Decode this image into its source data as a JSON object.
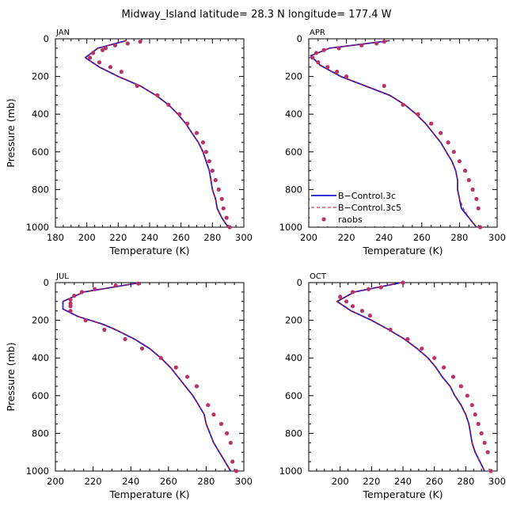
{
  "title": "Midway_Island   latitude= 28.3 N longitude= 177.4 W",
  "colors": {
    "model_3c": "#1a1ad0",
    "model_3c5": "#cc1111",
    "raobs": "#b8336a",
    "axis": "#000000"
  },
  "legend": {
    "entries": [
      {
        "label": "B−Control.3c",
        "style": "solid-line"
      },
      {
        "label": "B−Control.3c5",
        "style": "dashed-line"
      },
      {
        "label": "raobs",
        "style": "dot"
      }
    ]
  },
  "chart_data": [
    {
      "type": "line",
      "panel": "JAN",
      "title": "JAN",
      "xlabel": "Temperature (K)",
      "ylabel": "Pressure (mb)",
      "xlim": [
        180,
        300
      ],
      "ylim": [
        0,
        1000
      ],
      "y_inverted": true,
      "xticks": [
        180,
        200,
        220,
        240,
        260,
        280,
        300
      ],
      "yticks": [
        0,
        200,
        400,
        600,
        800,
        1000
      ],
      "pressure": [
        10,
        50,
        100,
        150,
        200,
        250,
        300,
        350,
        400,
        450,
        500,
        550,
        600,
        650,
        700,
        750,
        800,
        850,
        900,
        950,
        1000
      ],
      "series": [
        {
          "name": "B−Control.3c",
          "temperature": [
            225,
            207,
            199,
            208,
            220,
            234,
            244,
            252,
            258,
            263,
            267,
            271,
            274,
            276,
            278,
            279,
            280,
            282,
            283,
            286,
            290
          ]
        },
        {
          "name": "B−Control.3c5",
          "temperature": [
            225,
            207,
            199,
            208,
            220,
            234,
            244,
            252,
            258,
            263,
            267,
            271,
            274,
            276,
            278,
            279,
            280,
            282,
            283,
            286,
            290
          ]
        }
      ],
      "raobs": {
        "temperature": [
          234,
          226,
          218,
          212,
          210,
          204,
          202,
          208,
          215,
          222,
          232,
          245,
          252,
          259,
          264,
          270,
          274,
          276,
          278,
          280,
          282,
          284,
          286,
          287,
          289,
          291
        ],
        "pressure": [
          15,
          25,
          35,
          50,
          60,
          75,
          100,
          125,
          150,
          175,
          250,
          300,
          350,
          400,
          450,
          500,
          550,
          600,
          650,
          700,
          750,
          800,
          850,
          900,
          950,
          1000
        ]
      }
    },
    {
      "type": "line",
      "panel": "APR",
      "title": "APR",
      "xlabel": "Temperature (K)",
      "ylabel": "Pressure (mb)",
      "xlim": [
        200,
        300
      ],
      "ylim": [
        0,
        1000
      ],
      "y_inverted": true,
      "xticks": [
        200,
        220,
        240,
        260,
        280,
        300
      ],
      "yticks": [
        0,
        200,
        400,
        600,
        800,
        1000
      ],
      "pressure": [
        10,
        50,
        90,
        140,
        200,
        250,
        300,
        350,
        400,
        450,
        500,
        550,
        600,
        650,
        700,
        750,
        800,
        850,
        900,
        950,
        1000
      ],
      "series": [
        {
          "name": "B−Control.3c",
          "temperature": [
            243,
            211,
            201,
            206,
            217,
            230,
            243,
            251,
            257,
            262,
            266,
            270,
            273,
            276,
            278,
            279,
            279,
            280,
            281,
            285,
            289
          ]
        },
        {
          "name": "B−Control.3c5",
          "temperature": [
            243,
            211,
            201,
            206,
            217,
            230,
            243,
            251,
            257,
            262,
            266,
            270,
            273,
            276,
            278,
            279,
            279,
            280,
            282,
            285,
            289
          ]
        }
      ],
      "raobs": {
        "temperature": [
          240,
          236,
          228,
          216,
          208,
          204,
          202,
          205,
          210,
          215,
          220,
          240,
          250,
          258,
          265,
          270,
          274,
          277,
          280,
          283,
          285,
          287,
          289,
          290,
          291
        ],
        "pressure": [
          15,
          25,
          35,
          50,
          60,
          75,
          100,
          125,
          150,
          175,
          200,
          250,
          350,
          400,
          450,
          500,
          550,
          600,
          650,
          700,
          750,
          800,
          850,
          900,
          1000
        ]
      }
    },
    {
      "type": "line",
      "panel": "JUL",
      "title": "JUL",
      "xlabel": "Temperature (K)",
      "ylabel": "Pressure (mb)",
      "xlim": [
        200,
        300
      ],
      "ylim": [
        0,
        1000
      ],
      "y_inverted": true,
      "xticks": [
        200,
        220,
        240,
        260,
        280,
        300
      ],
      "yticks": [
        0,
        200,
        400,
        600,
        800,
        1000
      ],
      "pressure": [
        0,
        50,
        100,
        140,
        180,
        220,
        250,
        300,
        350,
        400,
        450,
        500,
        550,
        600,
        650,
        700,
        750,
        800,
        850,
        900,
        950,
        1000
      ],
      "series": [
        {
          "name": "B−Control.3c",
          "temperature": [
            245,
            215,
            204,
            204,
            212,
            225,
            232,
            242,
            250,
            256,
            261,
            265,
            269,
            273,
            276,
            279,
            280,
            282,
            284,
            287,
            290,
            293
          ]
        },
        {
          "name": "B−Control.3c5",
          "temperature": [
            245,
            215,
            204,
            204,
            212,
            225,
            232,
            242,
            250,
            256,
            261,
            265,
            269,
            273,
            276,
            279,
            280,
            282,
            284,
            287,
            290,
            293
          ]
        }
      ],
      "raobs": {
        "temperature": [
          244,
          232,
          221,
          214,
          210,
          208,
          208,
          208,
          208,
          216,
          226,
          237,
          246,
          256,
          264,
          270,
          275,
          281,
          284,
          288,
          291,
          293,
          294,
          296
        ],
        "pressure": [
          5,
          15,
          35,
          50,
          70,
          90,
          110,
          125,
          150,
          200,
          250,
          300,
          350,
          400,
          450,
          500,
          550,
          650,
          700,
          750,
          800,
          850,
          950,
          1000
        ]
      }
    },
    {
      "type": "line",
      "panel": "OCT",
      "title": "OCT",
      "xlabel": "Temperature (K)",
      "ylabel": "Pressure (mb)",
      "xlim": [
        180,
        300
      ],
      "ylim": [
        0,
        1000
      ],
      "y_inverted": true,
      "xticks": [
        200,
        220,
        240,
        260,
        280,
        300
      ],
      "yticks": [
        0,
        200,
        400,
        600,
        800,
        1000
      ],
      "pressure": [
        0,
        50,
        100,
        150,
        200,
        250,
        300,
        350,
        400,
        450,
        500,
        550,
        600,
        650,
        700,
        750,
        800,
        850,
        900,
        950,
        1000
      ],
      "series": [
        {
          "name": "B−Control.3c",
          "temperature": [
            239,
            209,
            198,
            207,
            220,
            231,
            241,
            249,
            256,
            261,
            265,
            270,
            273,
            277,
            280,
            282,
            283,
            284,
            286,
            289,
            292
          ]
        },
        {
          "name": "B−Control.3c5",
          "temperature": [
            239,
            209,
            198,
            207,
            220,
            231,
            241,
            249,
            256,
            261,
            265,
            270,
            273,
            277,
            280,
            282,
            283,
            284,
            286,
            289,
            292
          ]
        }
      ],
      "raobs": {
        "temperature": [
          240,
          226,
          218,
          208,
          200,
          204,
          208,
          214,
          219,
          232,
          243,
          252,
          260,
          266,
          272,
          277,
          281,
          284,
          286,
          288,
          290,
          292,
          294,
          296
        ],
        "pressure": [
          0,
          25,
          35,
          50,
          75,
          100,
          125,
          150,
          175,
          250,
          300,
          350,
          400,
          450,
          500,
          550,
          600,
          650,
          700,
          750,
          800,
          850,
          900,
          1000
        ]
      }
    }
  ]
}
